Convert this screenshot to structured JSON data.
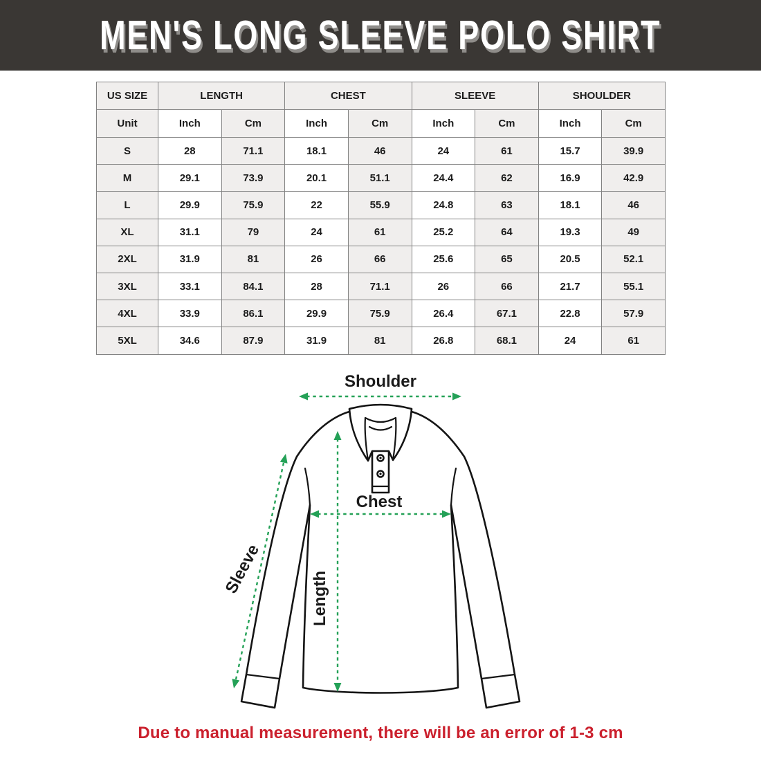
{
  "banner": {
    "title": "MEN'S LONG SLEEVE POLO SHIRT"
  },
  "size_chart": {
    "column_groups": [
      {
        "label": "US SIZE",
        "span": 1
      },
      {
        "label": "LENGTH",
        "span": 2
      },
      {
        "label": "CHEST",
        "span": 2
      },
      {
        "label": "SLEEVE",
        "span": 2
      },
      {
        "label": "SHOULDER",
        "span": 2
      }
    ],
    "unit_row": [
      "Unit",
      "Inch",
      "Cm",
      "Inch",
      "Cm",
      "Inch",
      "Cm",
      "Inch",
      "Cm"
    ],
    "rows": [
      {
        "size": "S",
        "values": [
          "28",
          "71.1",
          "18.1",
          "46",
          "24",
          "61",
          "15.7",
          "39.9"
        ]
      },
      {
        "size": "M",
        "values": [
          "29.1",
          "73.9",
          "20.1",
          "51.1",
          "24.4",
          "62",
          "16.9",
          "42.9"
        ]
      },
      {
        "size": "L",
        "values": [
          "29.9",
          "75.9",
          "22",
          "55.9",
          "24.8",
          "63",
          "18.1",
          "46"
        ]
      },
      {
        "size": "XL",
        "values": [
          "31.1",
          "79",
          "24",
          "61",
          "25.2",
          "64",
          "19.3",
          "49"
        ]
      },
      {
        "size": "2XL",
        "values": [
          "31.9",
          "81",
          "26",
          "66",
          "25.6",
          "65",
          "20.5",
          "52.1"
        ]
      },
      {
        "size": "3XL",
        "values": [
          "33.1",
          "84.1",
          "28",
          "71.1",
          "26",
          "66",
          "21.7",
          "55.1"
        ]
      },
      {
        "size": "4XL",
        "values": [
          "33.9",
          "86.1",
          "29.9",
          "75.9",
          "26.4",
          "67.1",
          "22.8",
          "57.9"
        ]
      },
      {
        "size": "5XL",
        "values": [
          "34.6",
          "87.9",
          "31.9",
          "81",
          "26.8",
          "68.1",
          "24",
          "61"
        ]
      }
    ]
  },
  "diagram": {
    "labels": {
      "shoulder": "Shoulder",
      "chest": "Chest",
      "sleeve": "Sleeve",
      "length": "Length"
    }
  },
  "footer": {
    "note": "Due to manual measurement, there will be an error of 1-3 cm"
  },
  "colors": {
    "banner_bg": "#3a3734",
    "arrow_green": "#24a157",
    "note_red": "#cb202d",
    "cell_gray": "#f0eeed",
    "border_gray": "#828282"
  }
}
